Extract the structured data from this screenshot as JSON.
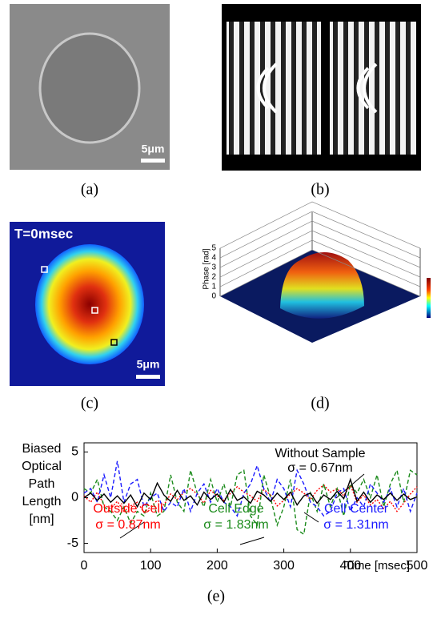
{
  "panels": {
    "a": {
      "label": "(a)",
      "scale_bar": "5μm"
    },
    "b": {
      "label": "(b)"
    },
    "c": {
      "label": "(c)",
      "time": "T=0msec",
      "scale_bar": "5μm"
    },
    "d": {
      "label": "(d)",
      "zlabel": "Phase [rad]",
      "zticks": [
        0,
        1,
        2,
        3,
        4,
        5
      ]
    }
  },
  "chart_data": {
    "type": "line",
    "panel_label": "(e)",
    "ylabel": [
      "Biased",
      "Optical",
      "Path",
      "Length",
      "[nm]"
    ],
    "xlabel": "Time [msec]",
    "xlim": [
      0,
      500
    ],
    "xticks": [
      0,
      100,
      200,
      300,
      400,
      500
    ],
    "ylim": [
      -6,
      6
    ],
    "yticks": [
      -5,
      0,
      5
    ],
    "x": [
      0,
      10,
      20,
      30,
      40,
      50,
      60,
      70,
      80,
      90,
      100,
      110,
      120,
      130,
      140,
      150,
      160,
      170,
      180,
      190,
      200,
      210,
      220,
      230,
      240,
      250,
      260,
      270,
      280,
      290,
      300,
      310,
      320,
      330,
      340,
      350,
      360,
      370,
      380,
      390,
      400,
      410,
      420,
      430,
      440,
      450,
      460,
      470,
      480,
      490,
      500
    ],
    "series": [
      {
        "name": "Without Sample",
        "sigma_label": "σ = 0.67nm",
        "color": "#000000",
        "dash": "none",
        "values": [
          0,
          0.5,
          -0.3,
          0.4,
          -0.5,
          0.2,
          -0.6,
          0.3,
          -1.0,
          0.5,
          -0.2,
          1.6,
          0.3,
          -0.4,
          0.8,
          -0.3,
          0.2,
          -0.8,
          0.6,
          -0.2,
          0.4,
          -0.5,
          0.9,
          -0.3,
          0.1,
          -0.6,
          0.7,
          0.3,
          -0.4,
          0.5,
          -0.2,
          0.6,
          -0.8,
          0.2,
          0.5,
          -0.6,
          0.3,
          -0.2,
          0.7,
          -0.1,
          2.0,
          -0.4,
          0.6,
          -0.5,
          0.3,
          -0.2,
          0.5,
          -0.3,
          0.4,
          -0.2,
          0.1
        ]
      },
      {
        "name": "Outside Cell",
        "sigma_label": "σ = 0.87nm",
        "color": "#ff0000",
        "dash": "2 2",
        "values": [
          0.2,
          -0.5,
          0.6,
          -0.8,
          -1.2,
          -0.4,
          -1.5,
          -0.9,
          -0.5,
          -1.6,
          -1.0,
          -0.3,
          -0.8,
          0.4,
          -0.2,
          0.6,
          1.0,
          0.4,
          -0.6,
          0.8,
          0.2,
          -0.3,
          0.5,
          1.2,
          0.6,
          0.2,
          -0.4,
          0.9,
          0.3,
          -0.9,
          -0.3,
          0.4,
          1.0,
          0.5,
          -0.2,
          0.8,
          1.4,
          0.6,
          1.0,
          0.2,
          1.4,
          -0.5,
          0.3,
          -0.8,
          -0.2,
          -1.2,
          -0.4,
          -1.5,
          -0.6,
          0.4,
          1.2
        ]
      },
      {
        "name": "Cell Edge",
        "sigma_label": "σ = 1.83nm",
        "color": "#1a8a1a",
        "dash": "5 3",
        "values": [
          1.0,
          0.5,
          2.0,
          -1.0,
          -1.5,
          -2.5,
          -1.0,
          -2.8,
          -1.5,
          -2.0,
          0.5,
          -2.0,
          -1.5,
          2.5,
          -0.5,
          -1.5,
          3.0,
          0.5,
          -1.0,
          2.0,
          -0.5,
          1.5,
          -1.0,
          2.5,
          3.0,
          -2.0,
          -3.0,
          2.5,
          0.0,
          -3.0,
          -1.0,
          2.0,
          -3.5,
          -4.0,
          0.5,
          -1.5,
          1.5,
          -1.0,
          1.0,
          -2.0,
          1.5,
          0.5,
          2.0,
          0.0,
          2.5,
          -1.0,
          1.5,
          3.0,
          -0.5,
          3.0,
          2.5
        ]
      },
      {
        "name": "Cell Center",
        "sigma_label": "σ = 1.31nm",
        "color": "#1a1aff",
        "dash": "5 3",
        "values": [
          0.5,
          1.0,
          -0.5,
          2.5,
          0.0,
          4.0,
          -0.5,
          1.5,
          2.0,
          -1.0,
          0.0,
          0.5,
          -1.5,
          -0.5,
          -1.0,
          1.0,
          -1.5,
          0.5,
          1.5,
          -0.5,
          1.0,
          -0.5,
          -1.0,
          -2.0,
          0.5,
          1.5,
          3.5,
          1.0,
          -0.5,
          2.0,
          1.0,
          -1.0,
          3.0,
          1.5,
          -0.5,
          -1.0,
          -2.0,
          -1.5,
          0.5,
          1.0,
          -1.5,
          0.0,
          -1.0,
          1.5,
          0.5,
          -0.5,
          1.0,
          -1.0,
          1.0,
          -1.5,
          0.5
        ]
      }
    ]
  }
}
